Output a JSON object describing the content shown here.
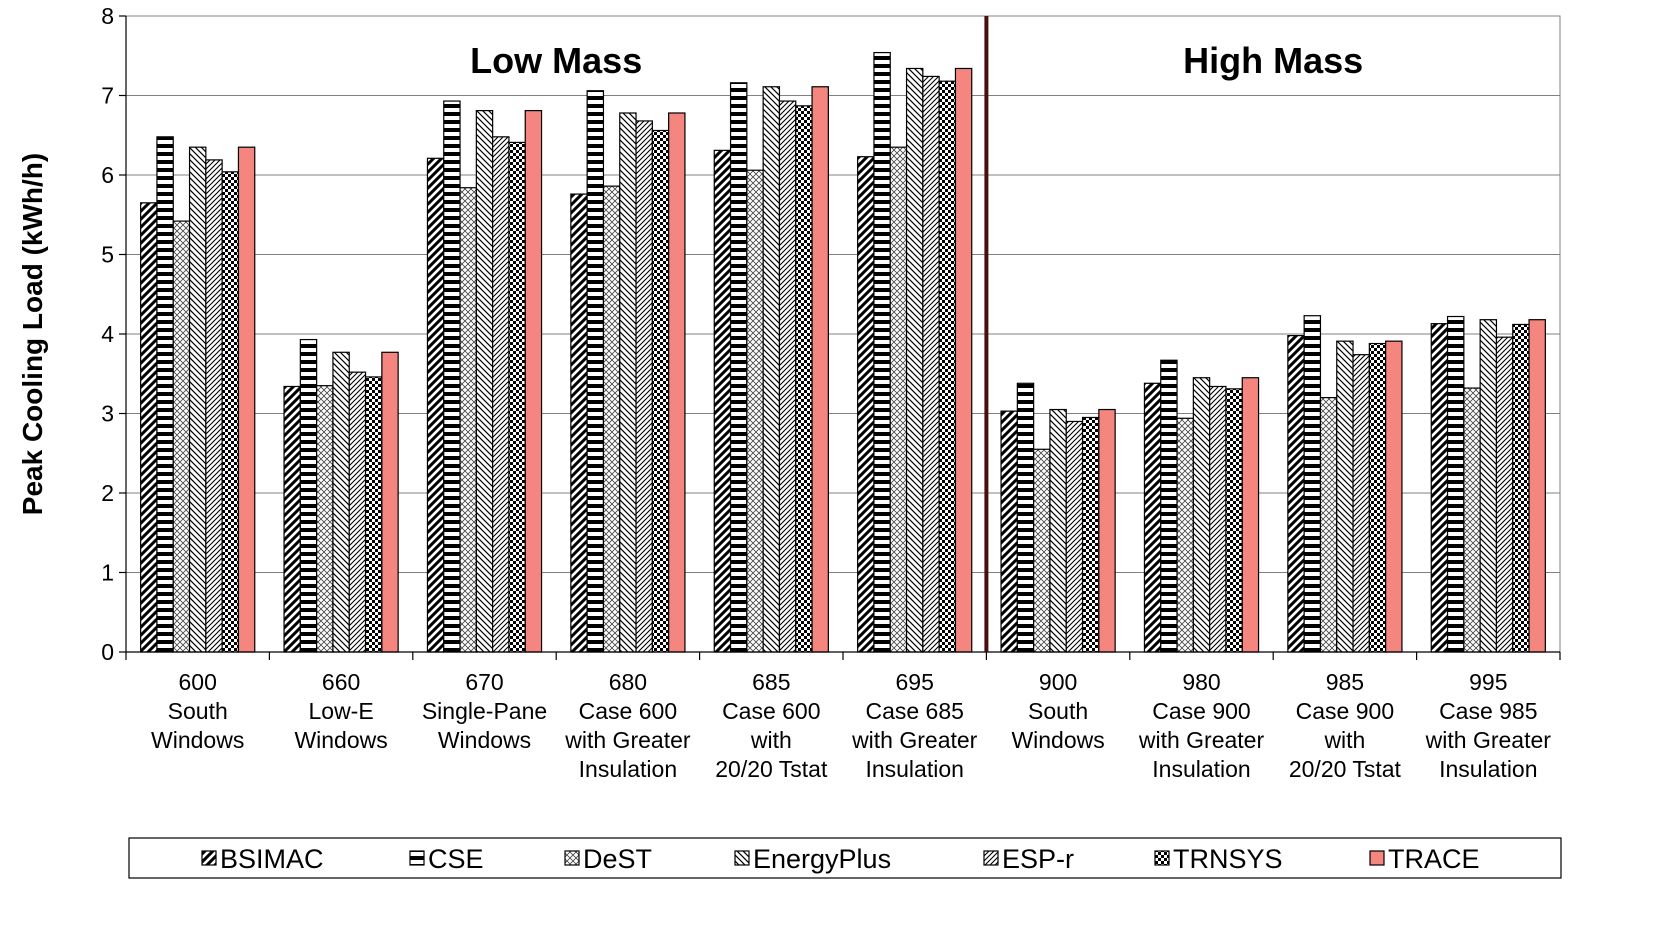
{
  "chart_data": {
    "type": "bar",
    "ylabel": "Peak Cooling Load (kWh/h)",
    "ylim": [
      0,
      8
    ],
    "yticks": [
      0,
      1,
      2,
      3,
      4,
      5,
      6,
      7,
      8
    ],
    "grid": true,
    "legend_position": "bottom",
    "sections": [
      {
        "label": "Low Mass",
        "category_range": [
          0,
          5
        ]
      },
      {
        "label": "High Mass",
        "category_range": [
          6,
          9
        ]
      }
    ],
    "categories": [
      [
        "600",
        "South",
        "Windows"
      ],
      [
        "660",
        "Low-E",
        "Windows"
      ],
      [
        "670",
        "Single-Pane",
        "Windows"
      ],
      [
        "680",
        "Case 600",
        "with Greater",
        "Insulation"
      ],
      [
        "685",
        "Case 600",
        "with",
        "20/20 Tstat"
      ],
      [
        "695",
        "Case 685",
        "with Greater",
        "Insulation"
      ],
      [
        "900",
        "South",
        "Windows"
      ],
      [
        "980",
        "Case 900",
        "with Greater",
        "Insulation"
      ],
      [
        "985",
        "Case 900",
        "with",
        "20/20 Tstat"
      ],
      [
        "995",
        "Case 985",
        "with Greater",
        "Insulation"
      ]
    ],
    "series": [
      {
        "name": "BSIMAC",
        "pattern": "diagonal-bold",
        "values": [
          5.65,
          3.34,
          6.21,
          5.76,
          6.31,
          6.23,
          3.03,
          3.38,
          3.98,
          4.13
        ]
      },
      {
        "name": "CSE",
        "pattern": "horizontal",
        "values": [
          6.48,
          3.93,
          6.93,
          7.06,
          7.16,
          7.54,
          3.38,
          3.67,
          4.23,
          4.22
        ]
      },
      {
        "name": "DeST",
        "pattern": "crosshatch-fine",
        "values": [
          5.42,
          3.35,
          5.84,
          5.86,
          6.06,
          6.35,
          2.55,
          2.94,
          3.2,
          3.32
        ]
      },
      {
        "name": "EnergyPlus",
        "pattern": "diagonal-reverse",
        "values": [
          6.35,
          3.77,
          6.81,
          6.78,
          7.11,
          7.34,
          3.05,
          3.45,
          3.91,
          4.18
        ]
      },
      {
        "name": "ESP-r",
        "pattern": "diagonal-fine",
        "values": [
          6.19,
          3.52,
          6.48,
          6.68,
          6.93,
          7.24,
          2.9,
          3.34,
          3.74,
          3.96
        ]
      },
      {
        "name": "TRNSYS",
        "pattern": "checker",
        "values": [
          6.04,
          3.46,
          6.41,
          6.56,
          6.87,
          7.18,
          2.95,
          3.31,
          3.88,
          4.12
        ]
      },
      {
        "name": "TRACE",
        "pattern": "solid",
        "values": [
          6.35,
          3.77,
          6.81,
          6.78,
          7.11,
          7.34,
          3.05,
          3.45,
          3.91,
          4.18
        ]
      }
    ],
    "colors": {
      "TRACE": "#f4857f",
      "divider": "#4a1010",
      "grid": "#808080"
    }
  }
}
